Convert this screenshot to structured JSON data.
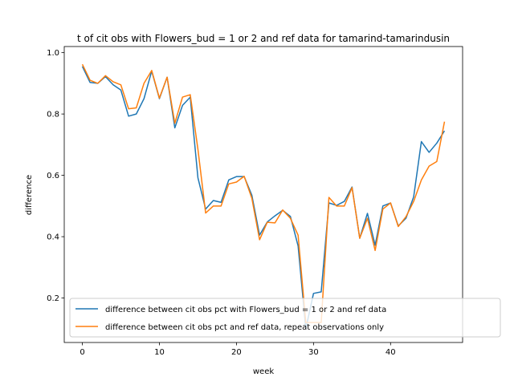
{
  "chart_data": {
    "type": "line",
    "title": "t of cit obs with Flowers_bud = 1 or 2 and ref data for tamarind-tamarindusin",
    "xlabel": "week",
    "ylabel": "difference",
    "xlim": [
      -2.35,
      49.35
    ],
    "ylim": [
      0.055,
      1.02
    ],
    "xticks": [
      0,
      10,
      20,
      30,
      40
    ],
    "yticks": [
      0.2,
      0.4,
      0.6,
      0.8,
      1.0
    ],
    "xtick_labels": [
      "0",
      "10",
      "20",
      "30",
      "40"
    ],
    "ytick_labels": [
      "0.2",
      "0.4",
      "0.6",
      "0.8",
      "1.0"
    ],
    "grid": false,
    "legend_position": "lower-right",
    "x": [
      0,
      1,
      2,
      3,
      4,
      5,
      6,
      7,
      8,
      9,
      10,
      11,
      12,
      13,
      14,
      15,
      16,
      17,
      18,
      19,
      20,
      21,
      22,
      23,
      24,
      25,
      26,
      27,
      28,
      29,
      30,
      31,
      32,
      33,
      34,
      35,
      36,
      37,
      38,
      39,
      40,
      41,
      42,
      43,
      44,
      45,
      46,
      47
    ],
    "series": [
      {
        "name": "difference between cit obs pct with Flowers_bud = 1 or 2 and ref data",
        "color": "#1f77b4",
        "values": [
          0.955,
          0.903,
          0.9,
          0.922,
          0.895,
          0.878,
          0.793,
          0.8,
          0.85,
          0.94,
          0.85,
          0.92,
          0.755,
          0.828,
          0.855,
          0.592,
          0.49,
          0.518,
          0.512,
          0.585,
          0.596,
          0.596,
          0.535,
          0.405,
          0.448,
          0.468,
          0.486,
          0.466,
          0.37,
          0.1,
          0.215,
          0.22,
          0.51,
          0.502,
          0.515,
          0.562,
          0.395,
          0.476,
          0.372,
          0.5,
          0.51,
          0.435,
          0.46,
          0.53,
          0.71,
          0.675,
          0.705,
          0.745
        ]
      },
      {
        "name": "difference between cit obs pct and ref data, repeat observations only",
        "color": "#ff7f0e",
        "values": [
          0.962,
          0.91,
          0.9,
          0.925,
          0.905,
          0.895,
          0.817,
          0.82,
          0.9,
          0.942,
          0.852,
          0.92,
          0.77,
          0.855,
          0.863,
          0.685,
          0.477,
          0.5,
          0.5,
          0.572,
          0.578,
          0.597,
          0.525,
          0.39,
          0.447,
          0.445,
          0.487,
          0.46,
          0.405,
          0.12,
          0.12,
          0.12,
          0.528,
          0.5,
          0.5,
          0.56,
          0.395,
          0.46,
          0.355,
          0.49,
          0.51,
          0.433,
          0.465,
          0.515,
          0.585,
          0.63,
          0.645,
          0.775
        ]
      }
    ]
  }
}
